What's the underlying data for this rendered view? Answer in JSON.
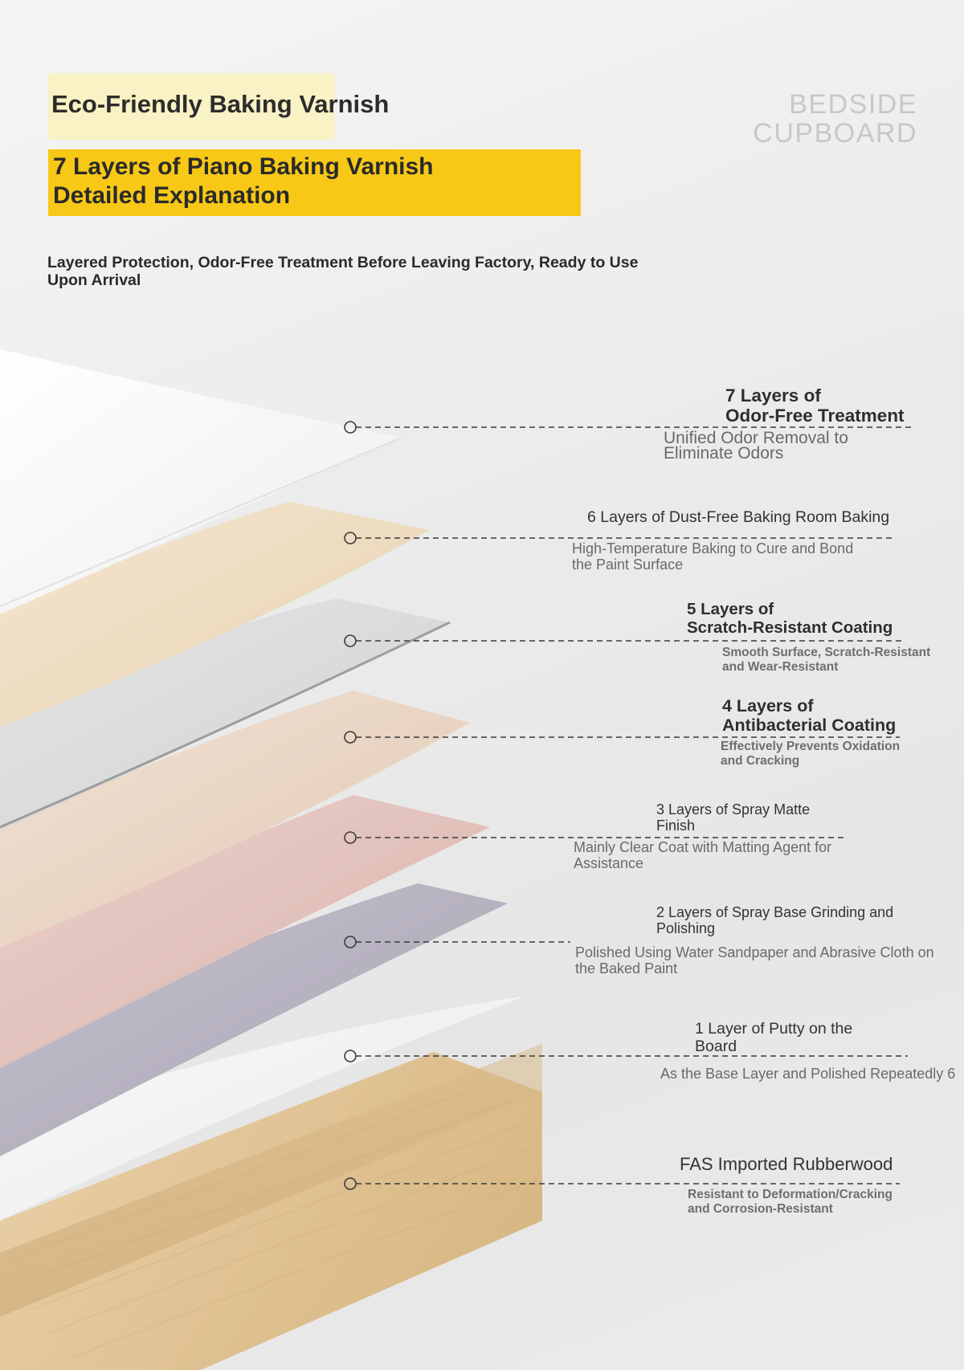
{
  "header": {
    "title": "Eco-Friendly Baking Varnish",
    "heading_line1": "7 Layers of Piano Baking Varnish",
    "heading_line2": "Detailed Explanation",
    "subtitle": "Layered Protection, Odor-Free Treatment Before Leaving Factory, Ready to Use Upon Arrival"
  },
  "brand": {
    "line1": "BEDSIDE",
    "line2": "CUPBOARD"
  },
  "layers": [
    {
      "title_line1": "7 Layers of",
      "title_line2": "Odor-Free Treatment",
      "desc_line1": "Unified Odor Removal to",
      "desc_line2": "Eliminate Odors"
    },
    {
      "title_line1": "6 Layers of Dust-Free Baking Room Baking",
      "desc_line1": "High-Temperature Baking to Cure and Bond",
      "desc_line2": "the Paint Surface"
    },
    {
      "title_line1": "5 Layers of",
      "title_line2": "Scratch-Resistant Coating",
      "desc_line1": "Smooth Surface, Scratch-Resistant",
      "desc_line2": "and Wear-Resistant"
    },
    {
      "title_line1": "4 Layers of",
      "title_line2": "Antibacterial Coating",
      "desc_line1": "Effectively Prevents Oxidation",
      "desc_line2": "and Cracking"
    },
    {
      "title_line1": "3 Layers of Spray Matte",
      "title_line2": "Finish",
      "desc_line1": "Mainly Clear Coat with Matting Agent for",
      "desc_line2": "Assistance"
    },
    {
      "title_line1": "2 Layers of Spray Base Grinding and",
      "title_line2": "Polishing",
      "desc_line1": "Polished Using Water Sandpaper and Abrasive Cloth on",
      "desc_line2": "the Baked Paint"
    },
    {
      "title_line1": "1 Layer of Putty on the",
      "title_line2": "Board",
      "desc_line1": "As the Base Layer and Polished Repeatedly 6"
    },
    {
      "title_line1": "FAS Imported Rubberwood",
      "desc_line1": "Resistant to Deformation/Cracking",
      "desc_line2": "and Corrosion-Resistant"
    }
  ],
  "colors": {
    "title_highlight": "#f8f2c4",
    "heading_highlight": "#f7c816",
    "brand_text": "#c8c8c8",
    "wood": "#e2c79b",
    "layer_white": "#f7f7f7",
    "layer_cream": "#efdcc0",
    "layer_glass": "#d9d9d9",
    "layer_peach": "#ecd8c6",
    "layer_pink": "#e4c3bd",
    "layer_lavender": "#b9b4c2",
    "layer_putty": "#f2f2f2"
  }
}
